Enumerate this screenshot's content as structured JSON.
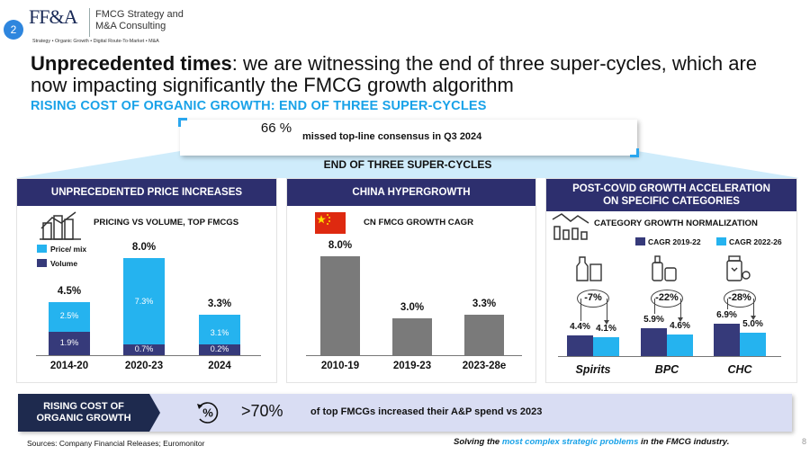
{
  "header": {
    "page_badge": "2",
    "logo_text": "FF&A",
    "logo_sub": "Strategy • Organic Growth • Digital Route-To-Market • M&A",
    "company_line1": "FMCG Strategy and",
    "company_line2": "M&A Consulting"
  },
  "title": {
    "bold": "Unprecedented times",
    "rest": ": we are witnessing the end of three super-cycles, which are now impacting significantly the FMCG growth algorithm"
  },
  "subtitle": "RISING COST OF ORGANIC GROWTH: END OF THREE SUPER-CYCLES",
  "callout": {
    "pct": "66 %",
    "text": "missed top-line consensus in Q3 2024"
  },
  "band_title": "END OF THREE SUPER-CYCLES",
  "colors": {
    "navy": "#2d2f6e",
    "dark_bar": "#363a7a",
    "light_blue": "#25b3ef",
    "grey_bar": "#7a7a7a",
    "accent": "#19a2e8"
  },
  "panel1": {
    "head": "UNPRECEDENTED PRICE INCREASES",
    "sub": "PRICING VS VOLUME, TOP FMCGS",
    "icon": "building-chart-icon",
    "legend": [
      "Price/ mix",
      "Volume"
    ],
    "chart_data": {
      "type": "bar",
      "stacked": true,
      "categories": [
        "2014-20",
        "2020-23",
        "2024"
      ],
      "series": [
        {
          "name": "Volume",
          "values": [
            1.9,
            0.7,
            0.2
          ],
          "labels": [
            "1.9%",
            "0.7%",
            "0.2%"
          ]
        },
        {
          "name": "Price/ mix",
          "values": [
            2.5,
            7.3,
            3.1
          ],
          "labels": [
            "2.5%",
            "7.3%",
            "3.1%"
          ]
        }
      ],
      "totals": [
        "4.5%",
        "8.0%",
        "3.3%"
      ],
      "total_values": [
        4.5,
        8.0,
        3.3
      ],
      "ylim": [
        0,
        8.0
      ]
    }
  },
  "panel2": {
    "head": "CHINA HYPERGROWTH",
    "sub": "CN FMCG GROWTH CAGR",
    "icon": "china-flag-icon",
    "chart_data": {
      "type": "bar",
      "categories": [
        "2010-19",
        "2019-23",
        "2023-28e"
      ],
      "values": [
        8.0,
        3.0,
        3.3
      ],
      "labels": [
        "8.0%",
        "3.0%",
        "3.3%"
      ],
      "ylim": [
        0,
        8.0
      ]
    }
  },
  "panel3": {
    "head_line1": "POST-COVID GROWTH ACCELERATION",
    "head_line2": "ON SPECIFIC CATEGORIES",
    "sub": "CATEGORY GROWTH NORMALIZATION",
    "icon": "growth-chart-icon",
    "legend": [
      "CAGR 2019-22",
      "CAGR 2022-26"
    ],
    "chart_data": {
      "type": "bar",
      "categories": [
        "Spirits",
        "BPC",
        "CHC"
      ],
      "series": [
        {
          "name": "CAGR 2019-22",
          "values": [
            4.4,
            5.9,
            6.9
          ],
          "labels": [
            "4.4%",
            "5.9%",
            "6.9%"
          ]
        },
        {
          "name": "CAGR 2022-26",
          "values": [
            4.1,
            4.6,
            5.0
          ],
          "labels": [
            "4.1%",
            "4.6%",
            "5.0%"
          ]
        }
      ],
      "changes": [
        "-7%",
        "-22%",
        "-28%"
      ],
      "ylim": [
        0,
        8.0
      ]
    },
    "category_icons": [
      "spirits-bottle-icon",
      "cosmetics-bottle-icon",
      "medicine-bottle-icon"
    ]
  },
  "bottom": {
    "label_line1": "RISING COST OF",
    "label_line2": "ORGANIC GROWTH",
    "icon": "percent-cycle-icon",
    "pct": ">70%",
    "text": "of top FMCGs increased their A&P spend vs 2023"
  },
  "footer": {
    "sources": "Sources: Company Financial Releases; Euromonitor",
    "tag_pre": "Solving the ",
    "tag_hl": "most complex strategic problems",
    "tag_post": " in the FMCG industry.",
    "page": "8"
  }
}
